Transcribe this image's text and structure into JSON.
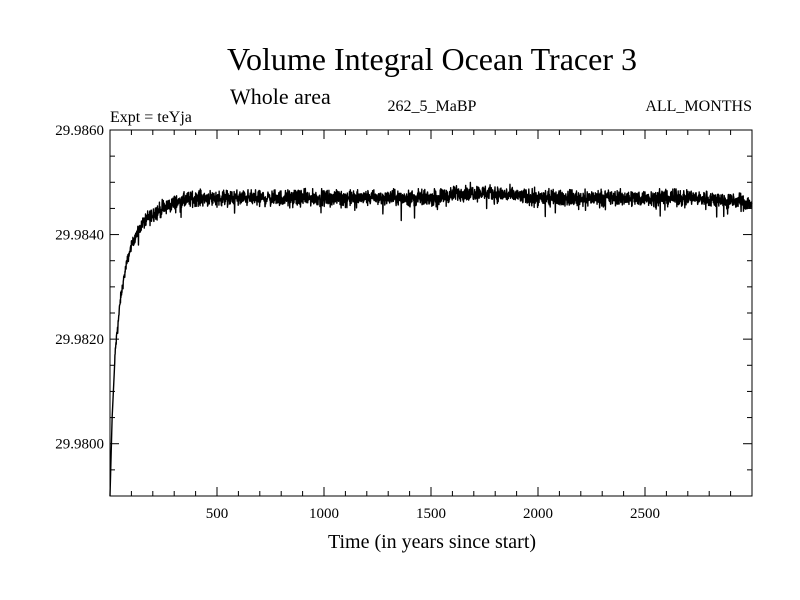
{
  "chart_data": {
    "type": "line",
    "title": "Volume Integral Ocean Tracer 3",
    "subtitle": "Whole area",
    "left_label": "Expt = teYja",
    "center_label": "262_5_MaBP",
    "right_label": "ALL_MONTHS",
    "xlabel": "Time (in years since start)",
    "ylabel": "",
    "xlim": [
      0,
      3000
    ],
    "ylim": [
      29.979,
      29.986
    ],
    "x_ticks": [
      500,
      1000,
      1500,
      2000,
      2500
    ],
    "x_tick_labels": [
      "500",
      "1000",
      "1500",
      "2000",
      "2500"
    ],
    "y_ticks": [
      29.98,
      29.982,
      29.984,
      29.986
    ],
    "y_tick_labels": [
      "29.9800",
      "29.9820",
      "29.9840",
      "29.9860"
    ],
    "grid": false,
    "line_color": "#000000",
    "series": [
      {
        "name": "Volume Integral Ocean Tracer 3",
        "x": [
          0,
          10,
          25,
          50,
          75,
          100,
          150,
          200,
          300,
          400,
          500,
          750,
          1000,
          1250,
          1500,
          1650,
          1750,
          2000,
          2250,
          2500,
          2750,
          3000
        ],
        "values": [
          29.979,
          29.9805,
          29.9818,
          29.9828,
          29.9834,
          29.9838,
          29.9842,
          29.9844,
          29.9846,
          29.9847,
          29.9847,
          29.9847,
          29.9847,
          29.9847,
          29.9847,
          29.9848,
          29.9848,
          29.9847,
          29.9847,
          29.9847,
          29.9847,
          29.9846
        ]
      }
    ],
    "noise_amplitude": 0.00022
  }
}
